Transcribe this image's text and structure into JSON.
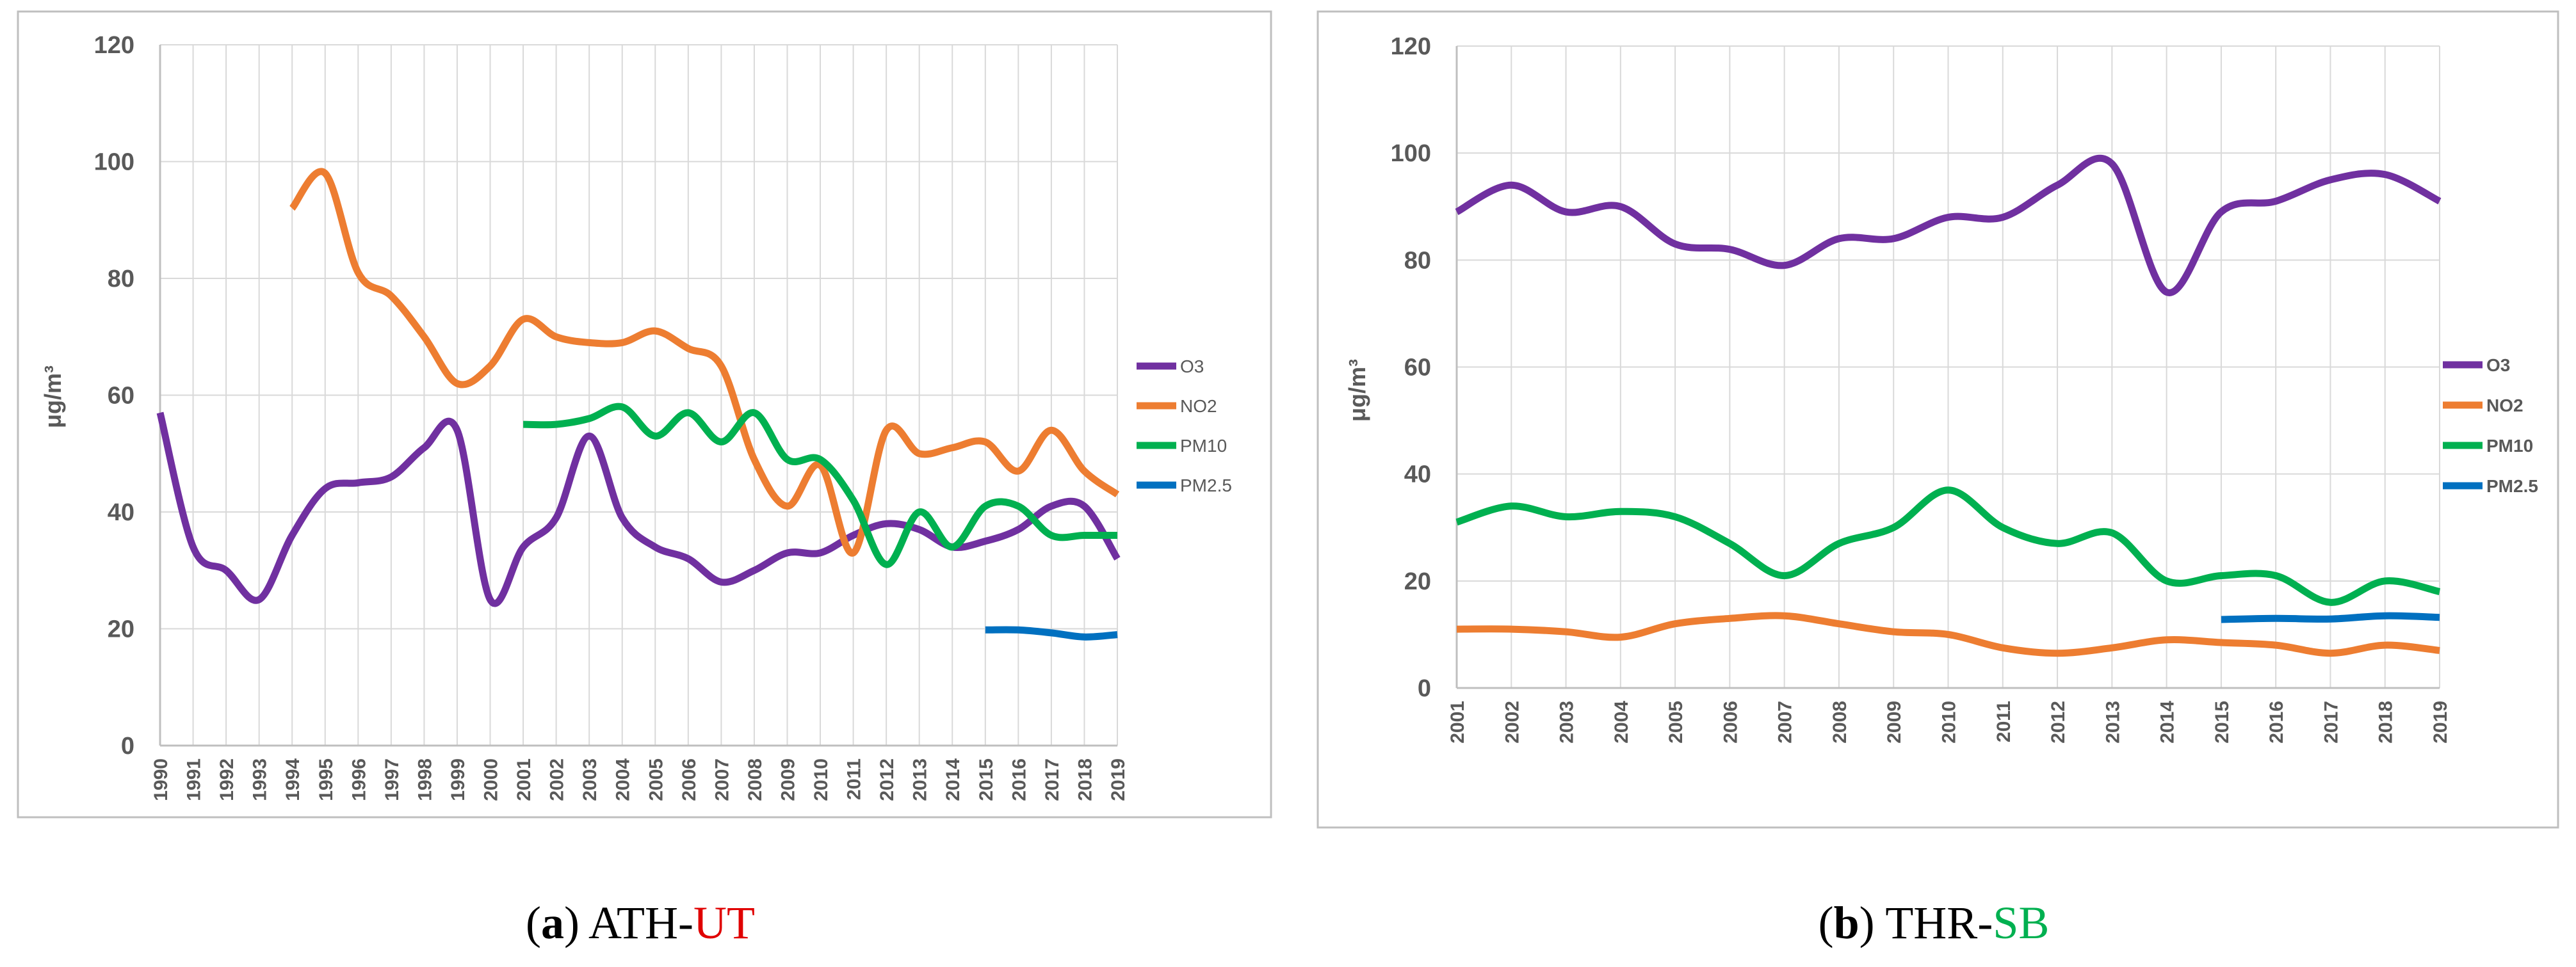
{
  "colors": {
    "O3": "#7030A0",
    "NO2": "#ED7D31",
    "PM10": "#00B050",
    "PM2.5": "#0070C0",
    "grid": "#D9D9D9",
    "frame": "#BFBFBF",
    "caption_red": "#E00000",
    "caption_green": "#00B050"
  },
  "chart_data": [
    {
      "type": "line",
      "ylabel": "μg/m³",
      "ylim": [
        0,
        120
      ],
      "yticks": [
        0,
        20,
        40,
        60,
        80,
        100,
        120
      ],
      "legend_position": "right",
      "x": [
        1990,
        1991,
        1992,
        1993,
        1994,
        1995,
        1996,
        1997,
        1998,
        1999,
        2000,
        2001,
        2002,
        2003,
        2004,
        2005,
        2006,
        2007,
        2008,
        2009,
        2010,
        2011,
        2012,
        2013,
        2014,
        2015,
        2016,
        2017,
        2018,
        2019
      ],
      "x_labels": [
        "1990",
        "1991",
        "1992",
        "1993",
        "1994",
        "1995",
        "1996",
        "1997",
        "1998",
        "1999",
        "2000",
        "2001",
        "2002",
        "2003",
        "2004",
        "2005",
        "2006",
        "2007",
        "2008",
        "2009",
        "2010",
        "2011",
        "2012",
        "2013",
        "2014",
        "2015",
        "2016",
        "2017",
        "2018",
        "2019"
      ],
      "series": [
        {
          "name": "O3",
          "x": [
            1990,
            1991,
            1992,
            1993,
            1994,
            1995,
            1996,
            1997,
            1998,
            1999,
            2000,
            2001,
            2002,
            2003,
            2004,
            2005,
            2006,
            2007,
            2008,
            2009,
            2010,
            2011,
            2012,
            2013,
            2014,
            2015,
            2016,
            2017,
            2018,
            2019
          ],
          "values": [
            57,
            34,
            30,
            25,
            36,
            44,
            45,
            46,
            51,
            54,
            25,
            34,
            39,
            53,
            39,
            34,
            32,
            28,
            30,
            33,
            33,
            36,
            38,
            37,
            34,
            35,
            37,
            41,
            41,
            32
          ]
        },
        {
          "name": "NO2",
          "x": [
            1994,
            1995,
            1996,
            1997,
            1998,
            1999,
            2000,
            2001,
            2002,
            2003,
            2004,
            2005,
            2006,
            2007,
            2008,
            2009,
            2010,
            2011,
            2012,
            2013,
            2014,
            2015,
            2016,
            2017,
            2018,
            2019
          ],
          "values": [
            92,
            98,
            81,
            77,
            70,
            62,
            65,
            73,
            70,
            69,
            69,
            71,
            68,
            65,
            49,
            41,
            48,
            33,
            54,
            50,
            51,
            52,
            47,
            54,
            47,
            43
          ]
        },
        {
          "name": "PM10",
          "x": [
            2001,
            2002,
            2003,
            2004,
            2005,
            2006,
            2007,
            2008,
            2009,
            2010,
            2011,
            2012,
            2013,
            2014,
            2015,
            2016,
            2017,
            2018,
            2019
          ],
          "values": [
            55,
            55,
            56,
            58,
            53,
            57,
            52,
            57,
            49,
            49,
            42,
            31,
            40,
            34,
            41,
            41,
            36,
            36,
            36
          ]
        },
        {
          "name": "PM2.5",
          "x": [
            2015,
            2016,
            2017,
            2018,
            2019
          ],
          "values": [
            19.8,
            19.8,
            19.3,
            18.6,
            19
          ]
        }
      ],
      "caption_prefix": "(",
      "caption_letter": "a",
      "caption_close": ") ",
      "caption_main": "ATH-",
      "caption_colored": "UT"
    },
    {
      "type": "line",
      "ylabel": "μg/m³",
      "ylim": [
        0,
        120
      ],
      "yticks": [
        0,
        20,
        40,
        60,
        80,
        100,
        120
      ],
      "legend_position": "right",
      "x": [
        2001,
        2002,
        2003,
        2004,
        2005,
        2006,
        2007,
        2008,
        2009,
        2010,
        2011,
        2012,
        2013,
        2014,
        2015,
        2016,
        2017,
        2018,
        2019
      ],
      "x_labels": [
        "2001",
        "2002",
        "2003",
        "2004",
        "2005",
        "2006",
        "2007",
        "2008",
        "2009",
        "2010",
        "2011",
        "2012",
        "2013",
        "2014",
        "2015",
        "2016",
        "2017",
        "2018",
        "2019"
      ],
      "series": [
        {
          "name": "O3",
          "x": [
            2001,
            2002,
            2003,
            2004,
            2005,
            2006,
            2007,
            2008,
            2009,
            2010,
            2011,
            2012,
            2013,
            2014,
            2015,
            2016,
            2017,
            2018,
            2019
          ],
          "values": [
            89,
            94,
            89,
            90,
            83,
            82,
            79,
            84,
            84,
            88,
            88,
            94,
            98,
            74,
            89,
            91,
            95,
            96,
            91
          ]
        },
        {
          "name": "NO2",
          "x": [
            2001,
            2002,
            2003,
            2004,
            2005,
            2006,
            2007,
            2008,
            2009,
            2010,
            2011,
            2012,
            2013,
            2014,
            2015,
            2016,
            2017,
            2018,
            2019
          ],
          "values": [
            11,
            11,
            10.5,
            9.5,
            12,
            13,
            13.5,
            12,
            10.5,
            10,
            7.5,
            6.5,
            7.5,
            9,
            8.5,
            8,
            6.5,
            8,
            7
          ]
        },
        {
          "name": "PM10",
          "x": [
            2001,
            2002,
            2003,
            2004,
            2005,
            2006,
            2007,
            2008,
            2009,
            2010,
            2011,
            2012,
            2013,
            2014,
            2015,
            2016,
            2017,
            2018,
            2019
          ],
          "values": [
            31,
            34,
            32,
            33,
            32,
            27,
            21,
            27,
            30,
            37,
            30,
            27,
            29,
            20,
            21,
            21,
            16,
            20,
            18
          ]
        },
        {
          "name": "PM2.5",
          "x": [
            2015,
            2016,
            2017,
            2018,
            2019
          ],
          "values": [
            12.8,
            13,
            12.9,
            13.5,
            13.2
          ]
        }
      ],
      "caption_prefix": "(",
      "caption_letter": "b",
      "caption_close": ") ",
      "caption_main": "THR-",
      "caption_colored": "SB"
    }
  ]
}
